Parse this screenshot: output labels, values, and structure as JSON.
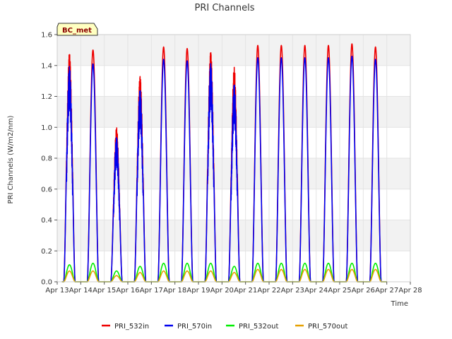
{
  "chart_data": {
    "type": "line",
    "title": "PRI Channels",
    "xlabel": "Time",
    "ylabel": "PRI Channels (W/m2/nm)",
    "badge": "BC_met",
    "xlim": [
      13,
      28
    ],
    "ylim": [
      0,
      1.6
    ],
    "x_ticks": [
      13,
      14,
      15,
      16,
      17,
      18,
      19,
      20,
      21,
      22,
      23,
      24,
      25,
      26,
      27,
      28
    ],
    "x_tick_labels": [
      "Apr 13",
      "Apr 14",
      "Apr 15",
      "Apr 16",
      "Apr 17",
      "Apr 18",
      "Apr 19",
      "Apr 20",
      "Apr 21",
      "Apr 22",
      "Apr 23",
      "Apr 24",
      "Apr 25",
      "Apr 26",
      "Apr 27",
      "Apr 28"
    ],
    "y_ticks": [
      0.0,
      0.2,
      0.4,
      0.6,
      0.8,
      1.0,
      1.2,
      1.4,
      1.6
    ],
    "y_tick_labels": [
      "0.0",
      "0.2",
      "0.4",
      "0.6",
      "0.8",
      "1.0",
      "1.2",
      "1.4",
      "1.6"
    ],
    "day_centers": [
      13.52,
      14.52,
      15.52,
      16.52,
      17.52,
      18.52,
      19.52,
      20.52,
      21.52,
      22.52,
      23.52,
      24.52,
      25.52,
      26.52
    ],
    "series": [
      {
        "name": "PRI_532in",
        "color": "#ee0000",
        "peaks": [
          1.49,
          1.5,
          1.0,
          1.34,
          1.52,
          1.51,
          1.5,
          1.39,
          1.53,
          1.53,
          1.53,
          1.53,
          1.54,
          1.52
        ]
      },
      {
        "name": "PRI_570in",
        "color": "#0000ee",
        "peaks": [
          1.4,
          1.41,
          0.94,
          1.25,
          1.44,
          1.43,
          1.42,
          1.28,
          1.45,
          1.45,
          1.45,
          1.45,
          1.46,
          1.44
        ]
      },
      {
        "name": "PRI_532out",
        "color": "#00ee00",
        "peaks": [
          0.11,
          0.12,
          0.07,
          0.1,
          0.12,
          0.12,
          0.12,
          0.1,
          0.12,
          0.12,
          0.12,
          0.12,
          0.12,
          0.12
        ]
      },
      {
        "name": "PRI_570out",
        "color": "#e6a000",
        "peaks": [
          0.07,
          0.07,
          0.04,
          0.06,
          0.07,
          0.07,
          0.07,
          0.06,
          0.08,
          0.08,
          0.08,
          0.08,
          0.08,
          0.08
        ]
      }
    ]
  }
}
